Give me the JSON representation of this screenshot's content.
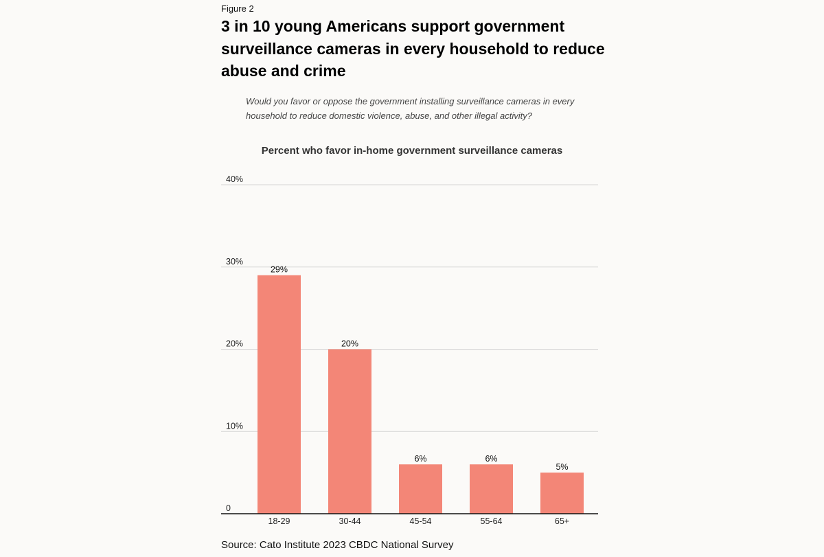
{
  "figure_label": "Figure 2",
  "headline": "3 in 10 young Americans support government surveillance cameras in every household to reduce abuse and crime",
  "question": "Would you favor or oppose the government installing surveillance cameras in every household to reduce domestic violence, abuse, and other illegal activity?",
  "source": "Source: Cato Institute 2023 CBDC National Survey",
  "colors": {
    "bar": "#f38677",
    "grid": "#d4d4d4",
    "axis": "#111111"
  },
  "chart_data": {
    "type": "bar",
    "title": "Percent who favor in-home government surveillance cameras",
    "xlabel": "",
    "ylabel": "",
    "categories": [
      "18-29",
      "30-44",
      "45-54",
      "55-64",
      "65+"
    ],
    "values": [
      29,
      20,
      6,
      6,
      5
    ],
    "data_labels": [
      "29%",
      "20%",
      "6%",
      "6%",
      "5%"
    ],
    "ylim": [
      0,
      40
    ],
    "yticks": [
      0,
      10,
      20,
      30,
      40
    ],
    "ytick_labels": [
      "0",
      "10%",
      "20%",
      "30%",
      "40%"
    ],
    "grid": true,
    "legend": "none"
  }
}
